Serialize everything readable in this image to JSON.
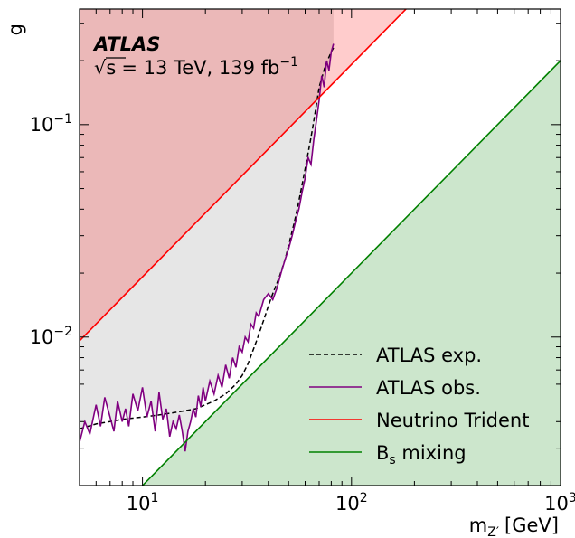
{
  "chart_data": {
    "type": "line",
    "title": "",
    "experiment": "ATLAS",
    "energy_label": "= 13 TeV, 139 fb",
    "sqrt_symbol": "√s",
    "lumi_exponent": "−1",
    "xlabel_main": "m",
    "xlabel_sub": "Z′",
    "xlabel_unit": "[GeV]",
    "ylabel": "g",
    "xscale": "log",
    "yscale": "log",
    "xlim": [
      5,
      1000
    ],
    "ylim": [
      0.002,
      0.35
    ],
    "x_ticks": [
      {
        "value": 10,
        "base": "10",
        "exp": "1"
      },
      {
        "value": 100,
        "base": "10",
        "exp": "2"
      },
      {
        "value": 1000,
        "base": "10",
        "exp": "3"
      }
    ],
    "y_ticks": [
      {
        "value": 0.01,
        "base": "10",
        "exp": "−2"
      },
      {
        "value": 0.1,
        "base": "10",
        "exp": "−1"
      }
    ],
    "legend_position": "bottom-right",
    "series": [
      {
        "name": "ATLAS exp.",
        "style": "dashed",
        "color": "#000000",
        "x": [
          5,
          6,
          7,
          8,
          10,
          12,
          14,
          16,
          18,
          20,
          22,
          25,
          28,
          30,
          32,
          35,
          38,
          40,
          42,
          45,
          48,
          50,
          53,
          55,
          58,
          60,
          63,
          65,
          68,
          70,
          75,
          80,
          82
        ],
        "y": [
          0.0037,
          0.0039,
          0.004,
          0.0041,
          0.0042,
          0.0043,
          0.0044,
          0.0045,
          0.0046,
          0.0048,
          0.005,
          0.0054,
          0.006,
          0.0066,
          0.0075,
          0.0095,
          0.012,
          0.014,
          0.016,
          0.019,
          0.023,
          0.027,
          0.034,
          0.04,
          0.052,
          0.062,
          0.08,
          0.095,
          0.125,
          0.15,
          0.19,
          0.22,
          0.23
        ]
      },
      {
        "name": "ATLAS obs.",
        "style": "solid",
        "color": "#800080",
        "x": [
          5,
          5.3,
          5.6,
          6,
          6.3,
          6.6,
          7,
          7.3,
          7.6,
          8,
          8.3,
          8.6,
          9,
          9.5,
          10,
          10.5,
          11,
          11.5,
          12,
          12.5,
          13,
          13.5,
          14,
          14.5,
          15,
          15.5,
          16,
          16.5,
          17,
          17.5,
          18,
          18.5,
          19,
          19.5,
          20,
          21,
          22,
          23,
          24,
          25,
          26,
          27,
          28,
          29,
          30,
          31,
          32,
          33,
          34,
          35,
          36,
          38,
          40,
          42,
          44,
          46,
          48,
          50,
          52,
          54,
          56,
          58,
          60,
          62,
          64,
          66,
          68,
          70,
          72,
          74,
          76,
          78,
          80,
          82
        ],
        "y": [
          0.0032,
          0.004,
          0.0035,
          0.0048,
          0.0038,
          0.0052,
          0.0042,
          0.0036,
          0.005,
          0.004,
          0.0046,
          0.0038,
          0.0054,
          0.0045,
          0.0058,
          0.0042,
          0.005,
          0.0036,
          0.0055,
          0.0041,
          0.0046,
          0.0034,
          0.004,
          0.0037,
          0.0043,
          0.0036,
          0.0029,
          0.0036,
          0.004,
          0.0046,
          0.0042,
          0.0053,
          0.0047,
          0.0058,
          0.005,
          0.0062,
          0.0054,
          0.0066,
          0.0058,
          0.0074,
          0.0064,
          0.008,
          0.0072,
          0.009,
          0.0085,
          0.01,
          0.0095,
          0.0115,
          0.011,
          0.013,
          0.0125,
          0.015,
          0.016,
          0.015,
          0.017,
          0.02,
          0.023,
          0.026,
          0.03,
          0.035,
          0.04,
          0.048,
          0.056,
          0.07,
          0.065,
          0.085,
          0.105,
          0.13,
          0.17,
          0.15,
          0.2,
          0.18,
          0.22,
          0.24
        ]
      },
      {
        "name": "Neutrino Trident",
        "style": "solid",
        "color": "#ff0000",
        "x": [
          5,
          200
        ],
        "y": [
          0.0096,
          0.384
        ]
      },
      {
        "name": "B",
        "name_sub": "s",
        "name_suffix": " mixing",
        "style": "solid",
        "color": "#008000",
        "x": [
          10,
          1000
        ],
        "y": [
          0.002,
          0.2
        ]
      }
    ],
    "regions": [
      {
        "id": "trident-excluded",
        "color": "#ff0000",
        "opacity": 0.2
      },
      {
        "id": "atlas-excluded",
        "color": "#808080",
        "opacity": 0.2
      },
      {
        "id": "bs-excluded",
        "color": "#008000",
        "opacity": 0.2
      }
    ]
  }
}
